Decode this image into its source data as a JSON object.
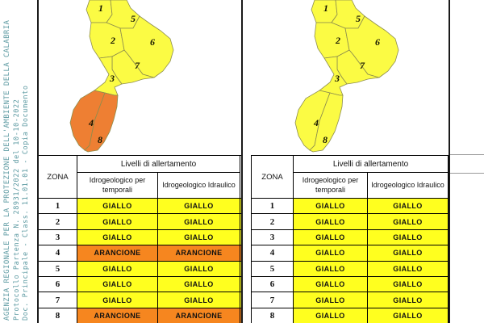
{
  "protocol_stamp": {
    "color": "#5d9aa2",
    "lines": [
      "AGENZIA REGIONALE PER LA PROTEZIONE DELL'AMBIENTE DELLA CALABRIA",
      "Protocollo Partenza N. 28931/2022 del 10-10-2022",
      "Doc. Principale - Class. 11.01.01 - Copia Documento"
    ]
  },
  "table_labels": {
    "zona": "ZONA",
    "group": "Livelli di allertamento",
    "col_temporali": "Idrogeologico per temporali",
    "col_idraulico": "Idrogeologico Idraulico"
  },
  "levels": {
    "GIALLO": "#ffff1f",
    "ARANCIONE": "#f6861f"
  },
  "map_colors": {
    "GIALLO": "#fbfb44",
    "ARANCIONE": "#ee7f33"
  },
  "panels": [
    {
      "name": "left-bulletin",
      "rows": [
        {
          "zona": "1",
          "temporali": "GIALLO",
          "idraulico": "GIALLO"
        },
        {
          "zona": "2",
          "temporali": "GIALLO",
          "idraulico": "GIALLO"
        },
        {
          "zona": "3",
          "temporali": "GIALLO",
          "idraulico": "GIALLO"
        },
        {
          "zona": "4",
          "temporali": "ARANCIONE",
          "idraulico": "ARANCIONE"
        },
        {
          "zona": "5",
          "temporali": "GIALLO",
          "idraulico": "GIALLO"
        },
        {
          "zona": "6",
          "temporali": "GIALLO",
          "idraulico": "GIALLO"
        },
        {
          "zona": "7",
          "temporali": "GIALLO",
          "idraulico": "GIALLO"
        },
        {
          "zona": "8",
          "temporali": "ARANCIONE",
          "idraulico": "ARANCIONE"
        }
      ]
    },
    {
      "name": "right-bulletin",
      "rows": [
        {
          "zona": "1",
          "temporali": "GIALLO",
          "idraulico": "GIALLO"
        },
        {
          "zona": "2",
          "temporali": "GIALLO",
          "idraulico": "GIALLO"
        },
        {
          "zona": "3",
          "temporali": "GIALLO",
          "idraulico": "GIALLO"
        },
        {
          "zona": "4",
          "temporali": "GIALLO",
          "idraulico": "GIALLO"
        },
        {
          "zona": "5",
          "temporali": "GIALLO",
          "idraulico": "GIALLO"
        },
        {
          "zona": "6",
          "temporali": "GIALLO",
          "idraulico": "GIALLO"
        },
        {
          "zona": "7",
          "temporali": "GIALLO",
          "idraulico": "GIALLO"
        },
        {
          "zona": "8",
          "temporali": "GIALLO",
          "idraulico": "GIALLO"
        }
      ]
    }
  ]
}
